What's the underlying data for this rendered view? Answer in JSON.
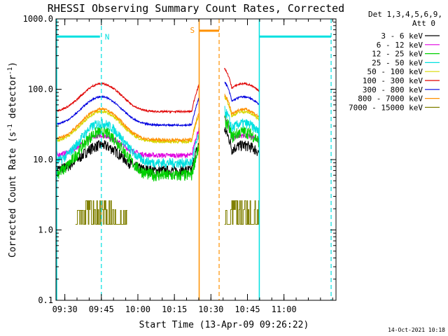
{
  "chart_data": {
    "type": "line",
    "title": "RHESSI Observing Summary Count Rates, Corrected",
    "xlabel": "Start Time (13-Apr-09 09:26:22)",
    "ylabel_main": "Corrected Count Rate (s",
    "ylabel_sup1": "-1",
    "ylabel_mid": " detector",
    "ylabel_sup2": "-1",
    "ylabel_end": ")",
    "y_scale": "log",
    "ylim": [
      0.1,
      1000
    ],
    "xlim_minutes": [
      0,
      115
    ],
    "x_ticks": [
      {
        "label": "09:30",
        "m": 3.63
      },
      {
        "label": "09:45",
        "m": 18.63
      },
      {
        "label": "10:00",
        "m": 33.63
      },
      {
        "label": "10:15",
        "m": 48.63
      },
      {
        "label": "10:30",
        "m": 63.63
      },
      {
        "label": "10:45",
        "m": 78.63
      },
      {
        "label": "11:00",
        "m": 93.63
      }
    ],
    "y_ticks": [
      {
        "label": "1000.0",
        "v": 1000
      },
      {
        "label": "100.0",
        "v": 100
      },
      {
        "label": "10.0",
        "v": 10
      },
      {
        "label": "1.0",
        "v": 1
      },
      {
        "label": "0.1",
        "v": 0.1
      }
    ],
    "legend_header": [
      "Det 1,3,4,5,6,9,",
      "Att 0"
    ],
    "legend_placement": "right",
    "series": [
      {
        "name": "3 - 6 keV",
        "color": "#000000",
        "base": 7.0,
        "peak": 16.0,
        "noise": 0.18
      },
      {
        "name": "6 - 12 keV",
        "color": "#e000e0",
        "base": 11.5,
        "peak": 22.0,
        "noise": 0.08
      },
      {
        "name": "12 - 25 keV",
        "color": "#00d000",
        "base": 6.0,
        "peak": 25.0,
        "noise": 0.2
      },
      {
        "name": "25 - 50 keV",
        "color": "#00e0e0",
        "base": 9.0,
        "peak": 33.0,
        "noise": 0.16
      },
      {
        "name": "50 - 100 keV",
        "color": "#d8d800",
        "base": 18.0,
        "peak": 48.0,
        "noise": 0.05
      },
      {
        "name": "100 - 300 keV",
        "color": "#e00000",
        "base": 48.0,
        "peak": 120.0,
        "noise": 0.03
      },
      {
        "name": "300 - 800 keV",
        "color": "#0000e0",
        "base": 31.0,
        "peak": 78.0,
        "noise": 0.03
      },
      {
        "name": "800 - 7000 keV",
        "color": "#ff9000",
        "base": 19.0,
        "peak": 52.0,
        "noise": 0.05
      },
      {
        "name": "7000 - 15000 keV",
        "color": "#808000",
        "base": 1.2,
        "peak": 2.6,
        "noise": 0.0
      }
    ],
    "annotations": [
      {
        "label": "N",
        "color": "#00e0e0"
      },
      {
        "label": "S",
        "color": "#ff9000"
      }
    ],
    "night_bars_minutes": [
      [
        0,
        18.63
      ],
      [
        83.5,
        113
      ]
    ],
    "night_level": 560,
    "saa_bar_minutes": [
      61.5,
      68.5
    ],
    "saa_level": 680,
    "saa_bounds_minutes": [
      58.8,
      67.0
    ],
    "night_bounds_minutes": [
      0,
      18.63,
      83.5,
      113
    ]
  },
  "footer_date": "14-Oct-2021 10:18"
}
